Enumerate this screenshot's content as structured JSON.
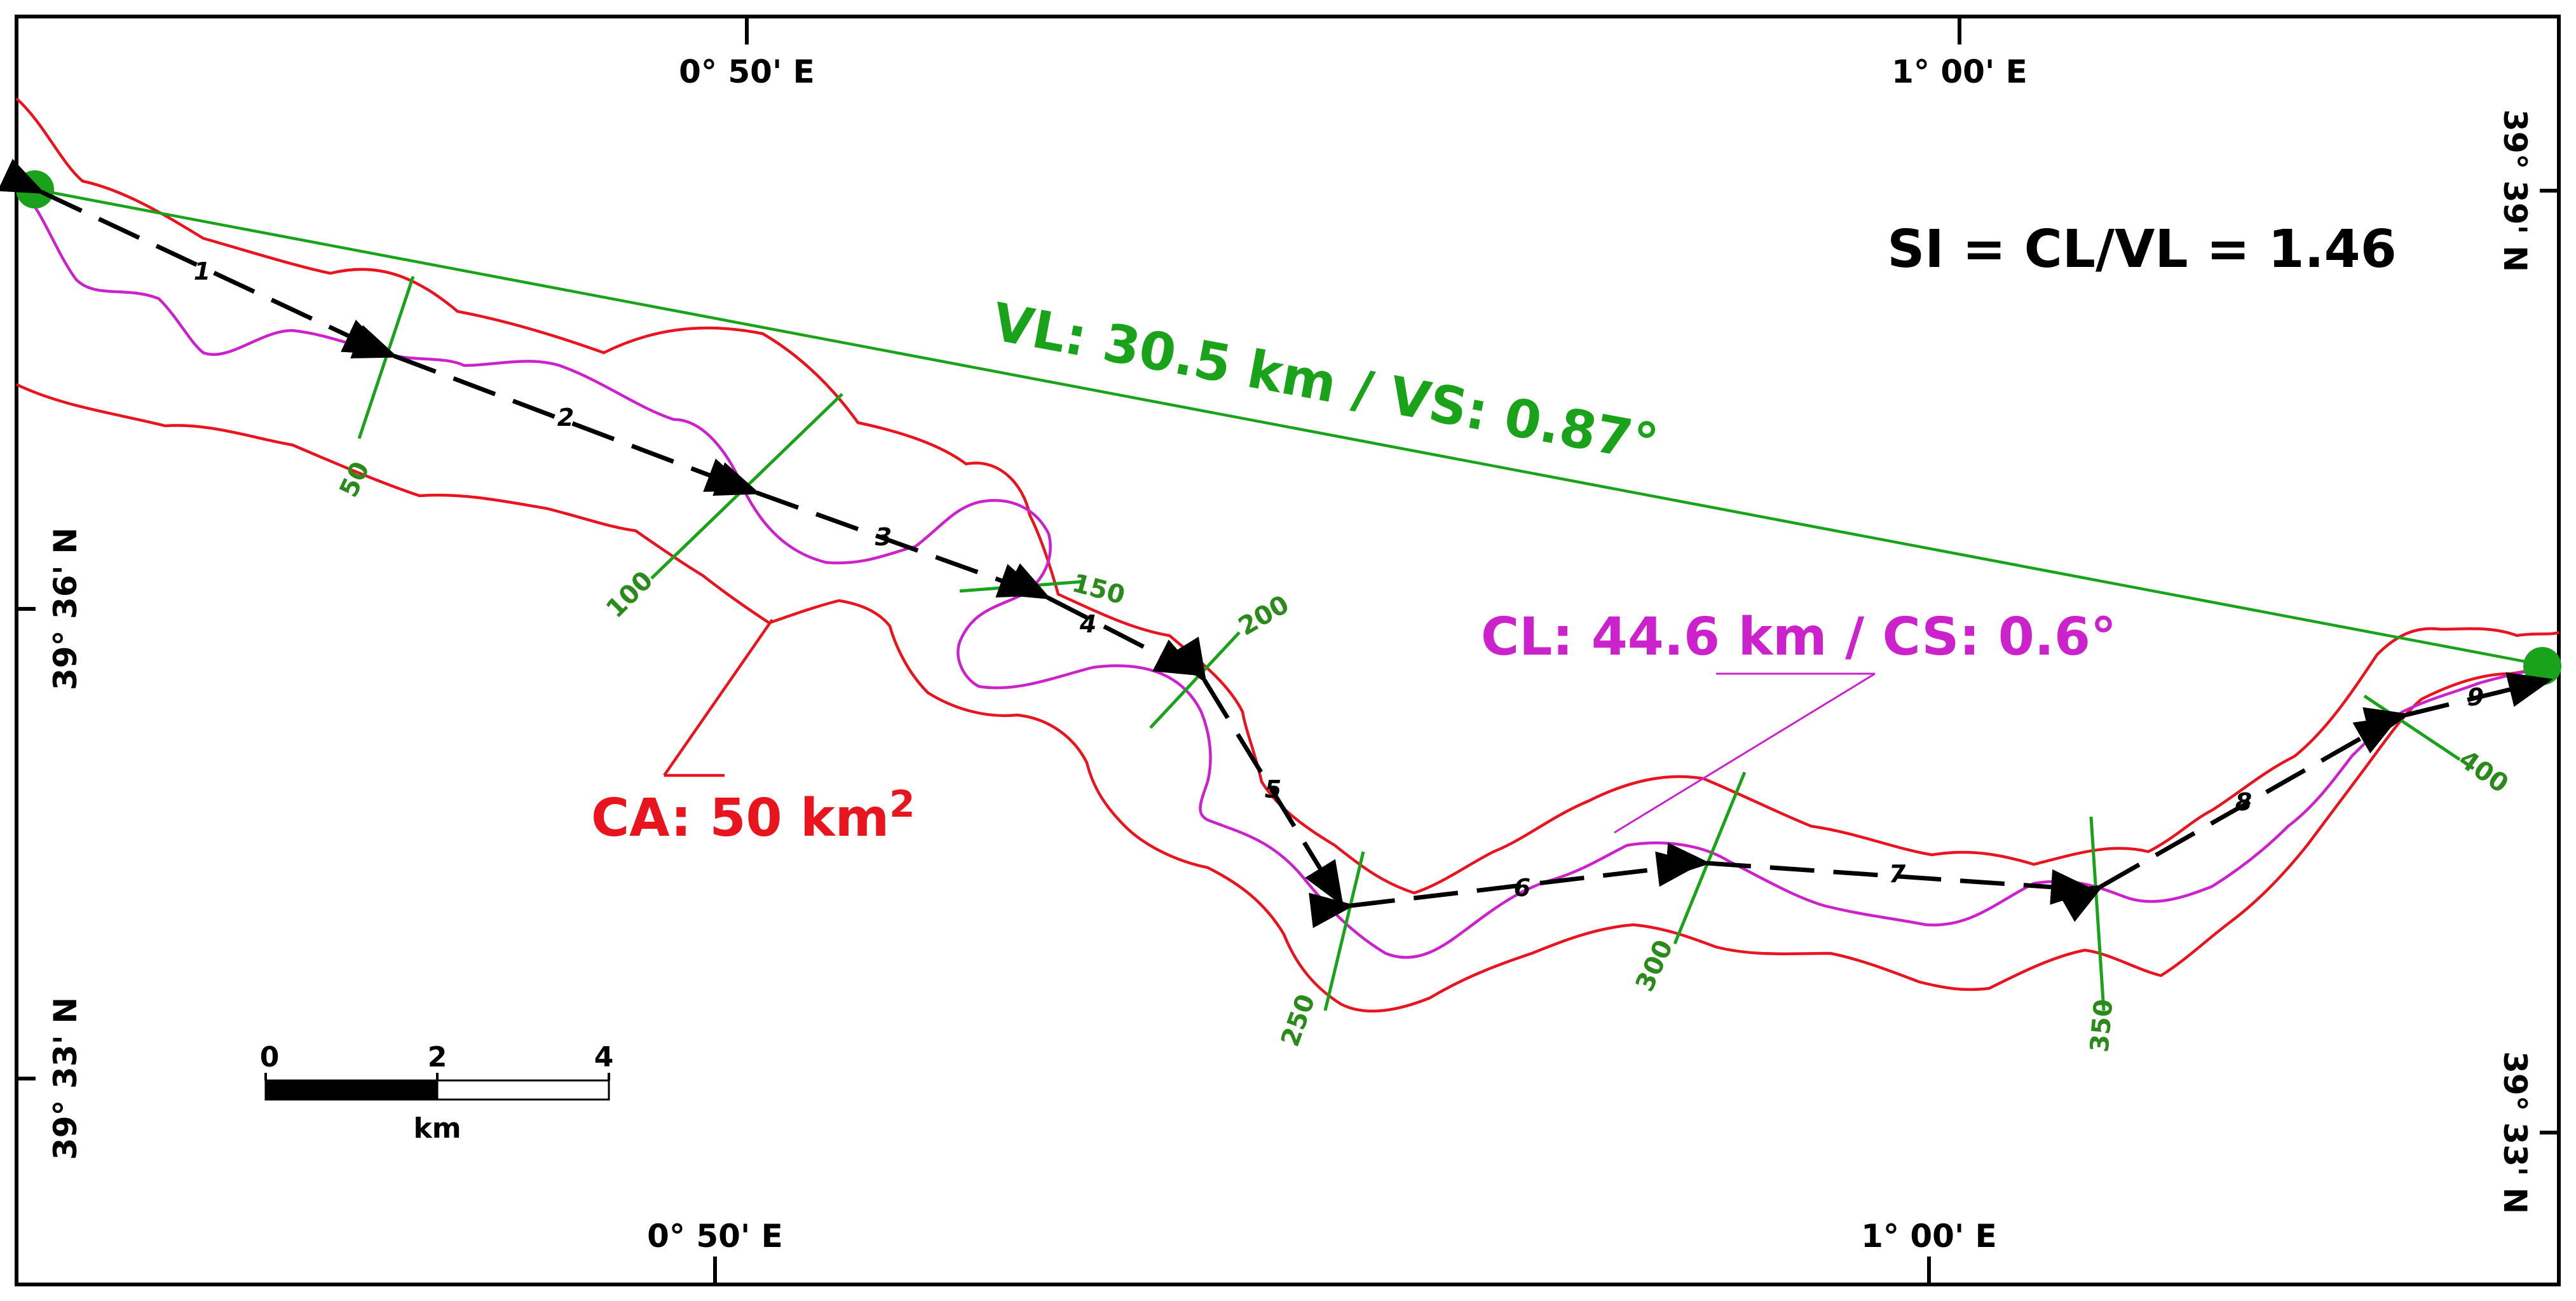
{
  "map": {
    "coords": {
      "top_left": "0° 50' E",
      "top_right": "1° 00' E",
      "bottom_left": "0° 50' E",
      "bottom_right": "1° 00' E",
      "left_upper": "39° 36' N",
      "left_lower": "39° 33' N",
      "right_upper": "39° 39' N",
      "right_lower": "39° 33' N"
    },
    "labels": {
      "si": "SI = CL/VL = 1.46",
      "vl": "VL: 30.5 km / VS: 0.87°",
      "cl": "CL: 44.6 km / CS: 0.6°",
      "ca": "CA: 50 km",
      "ca_sup": "2"
    },
    "segment_numbers": [
      "1",
      "2",
      "3",
      "4",
      "5",
      "6",
      "7",
      "8",
      "9"
    ],
    "km_markers": [
      "50",
      "100",
      "150",
      "200",
      "250",
      "300",
      "350",
      "400"
    ],
    "scale_bar": {
      "ticks": [
        "0",
        "2",
        "4"
      ],
      "unit": "km"
    },
    "colors": {
      "valley_line": "#1aa31a",
      "channel": "#cc22cc",
      "catchment": "#e8141e",
      "km_marker": "#1aa31a",
      "arrow": "#000000"
    }
  }
}
